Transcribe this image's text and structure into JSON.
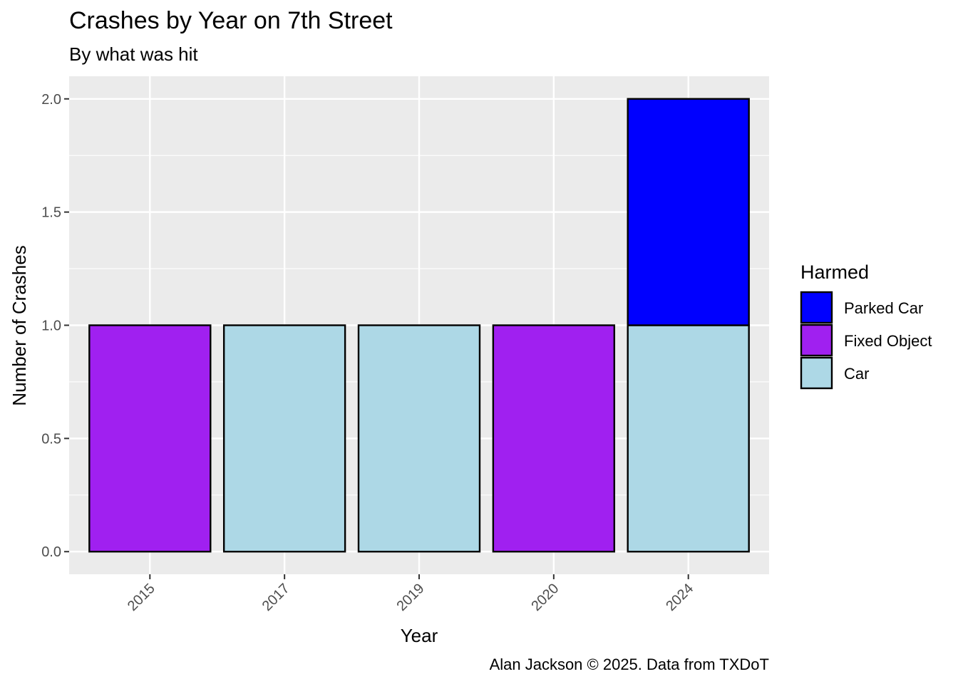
{
  "chart_data": {
    "type": "bar",
    "stacked": true,
    "title": "Crashes by Year on 7th Street",
    "subtitle": "By what was hit",
    "xlabel": "Year",
    "ylabel": "Number of Crashes",
    "caption": "Alan Jackson © 2025. Data from TXDoT",
    "categories": [
      "2015",
      "2017",
      "2019",
      "2020",
      "2024"
    ],
    "series": [
      {
        "name": "Car",
        "color": "#add8e6",
        "values": [
          0,
          1,
          1,
          0,
          1
        ]
      },
      {
        "name": "Fixed Object",
        "color": "#a020f0",
        "values": [
          1,
          0,
          0,
          1,
          0
        ]
      },
      {
        "name": "Parked Car",
        "color": "#0000ff",
        "values": [
          0,
          0,
          0,
          0,
          1
        ]
      }
    ],
    "ylim": [
      -0.1,
      2.1
    ],
    "yticks": [
      "0.0",
      "0.5",
      "1.0",
      "1.5",
      "2.0"
    ],
    "grid": true,
    "panel_background": "#ebebeb",
    "legend": {
      "title": "Harmed",
      "position": "right",
      "order": [
        "Parked Car",
        "Fixed Object",
        "Car"
      ]
    }
  }
}
